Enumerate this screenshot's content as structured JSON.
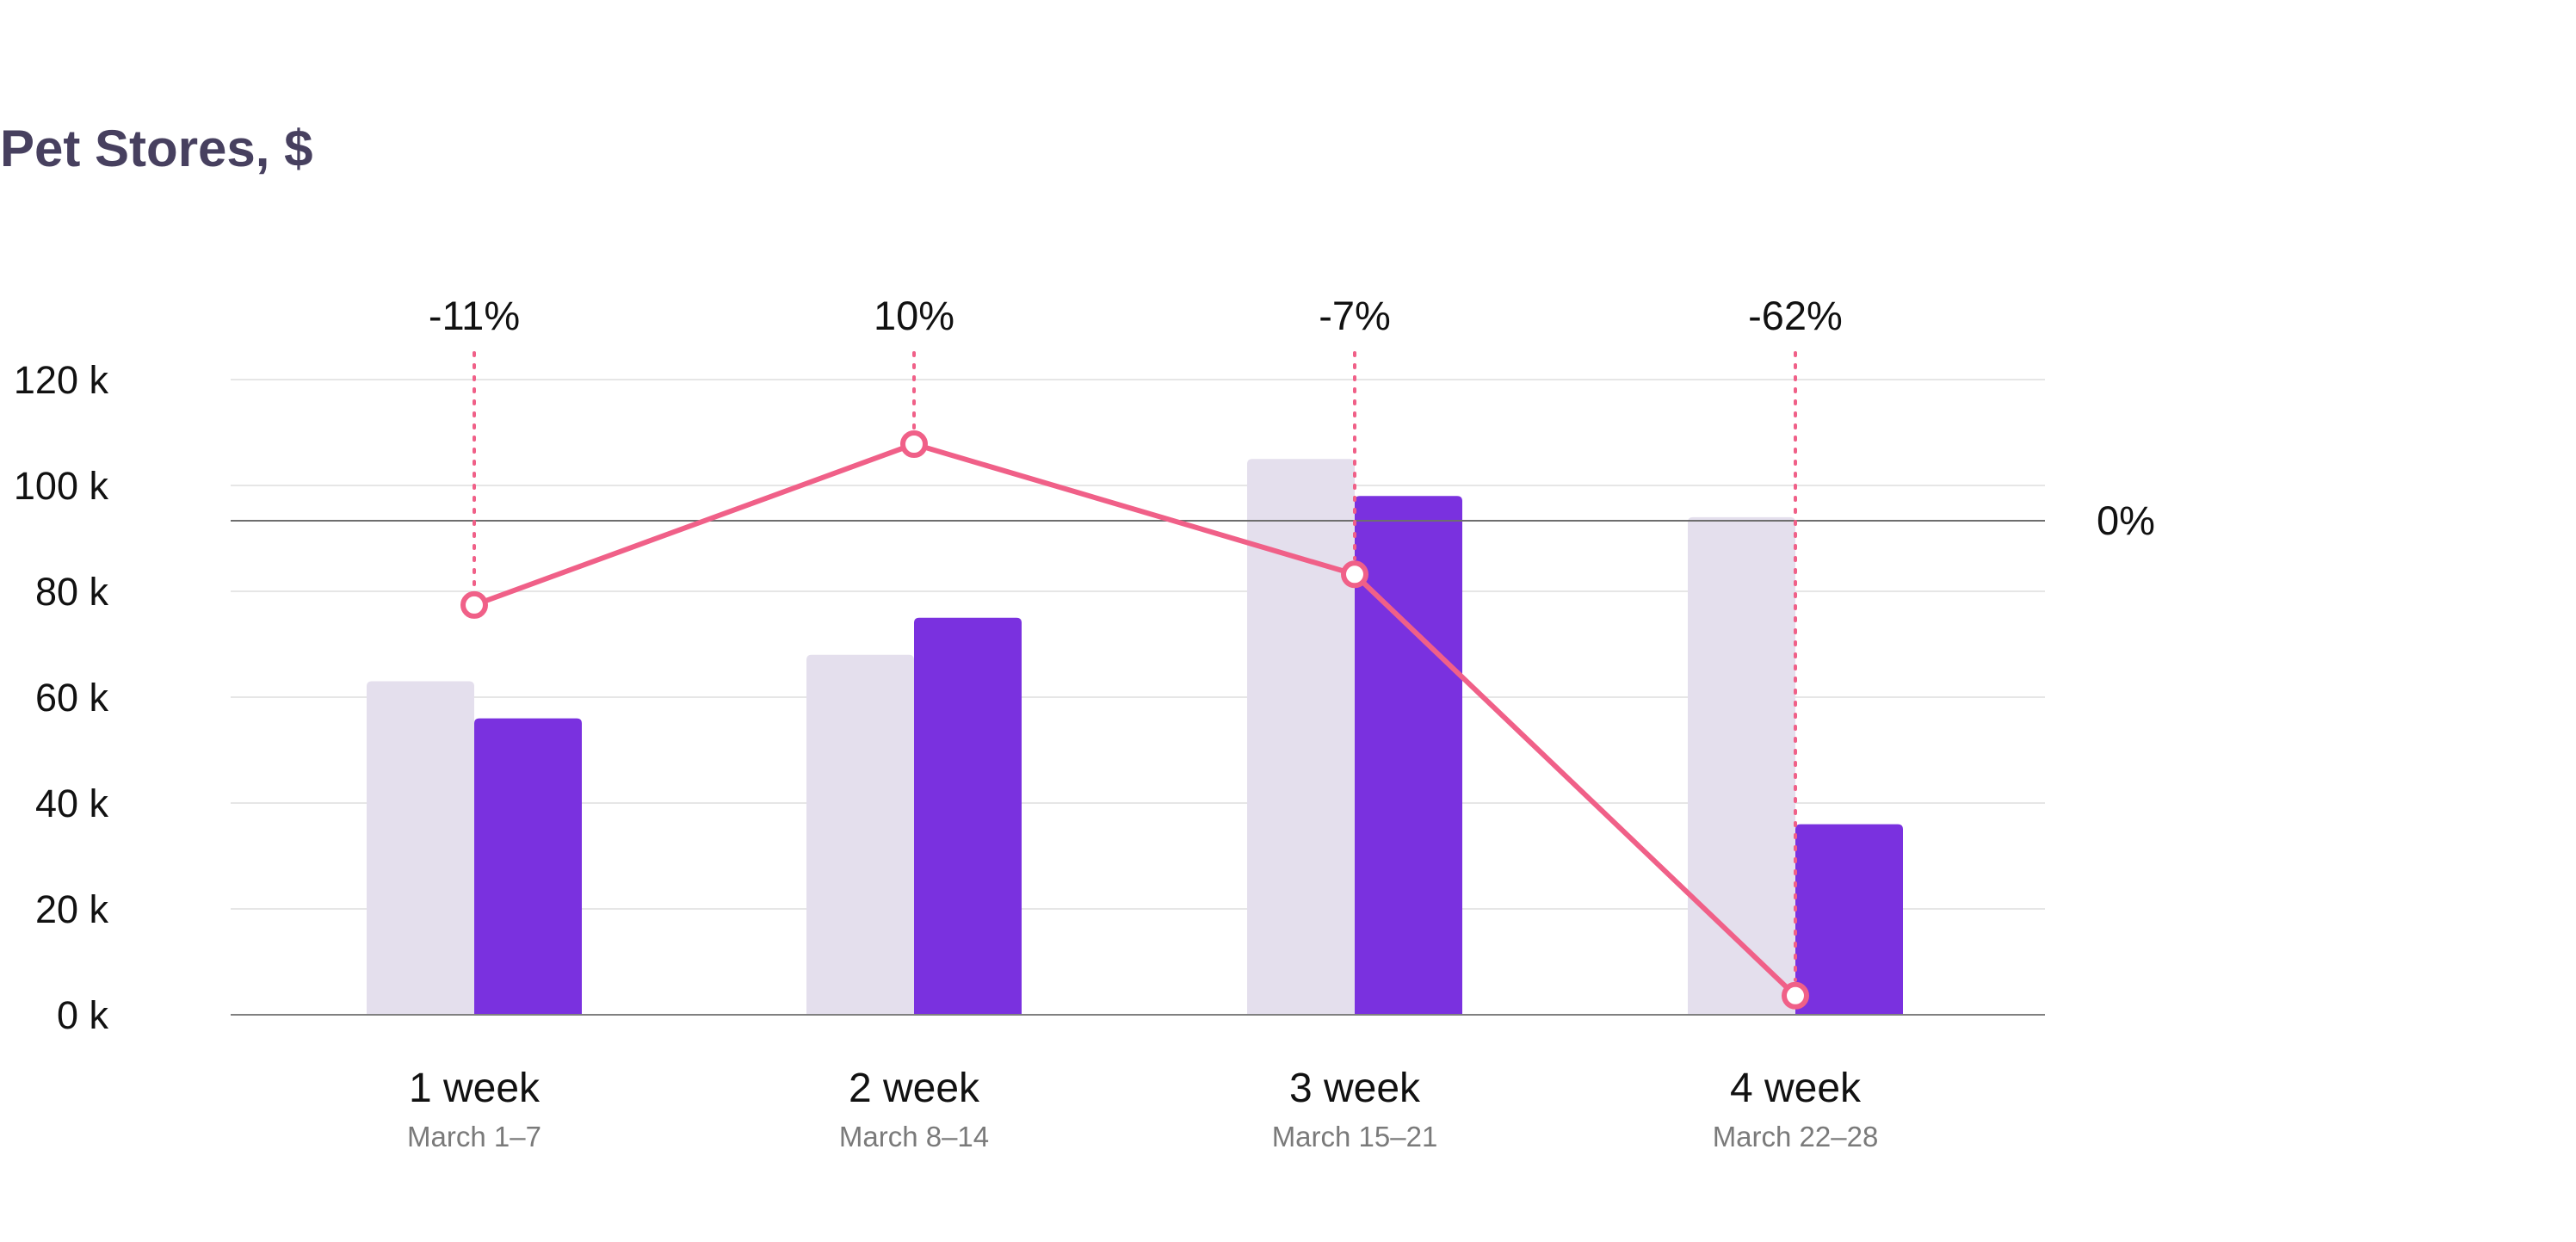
{
  "chart_data": {
    "type": "bar",
    "title": "Pet Stores, $",
    "categories": [
      "1 week",
      "2 week",
      "3 week",
      "4 week"
    ],
    "subcategories": [
      "March 1–7",
      "March 8–14",
      "March 15–21",
      "March 22–28"
    ],
    "series": [
      {
        "values": [
          63000,
          68000,
          105000,
          94000
        ],
        "color": "#e4dfed"
      },
      {
        "values": [
          56000,
          75000,
          98000,
          36000
        ],
        "color": "#7a31df"
      }
    ],
    "change": {
      "values": [
        -11,
        10,
        -7,
        -62
      ],
      "labels": [
        "-11%",
        "10%",
        "-7%",
        "-62%"
      ],
      "color": "#f06088",
      "zero_label": "0%"
    },
    "y_ticks": [
      0,
      20000,
      40000,
      60000,
      80000,
      100000,
      120000
    ],
    "y_tick_labels": [
      "0 k",
      "20 k",
      "40 k",
      "60 k",
      "80 k",
      "100 k",
      "120 k"
    ],
    "ylim": [
      0,
      120000
    ],
    "grid": true,
    "legend": "none"
  }
}
